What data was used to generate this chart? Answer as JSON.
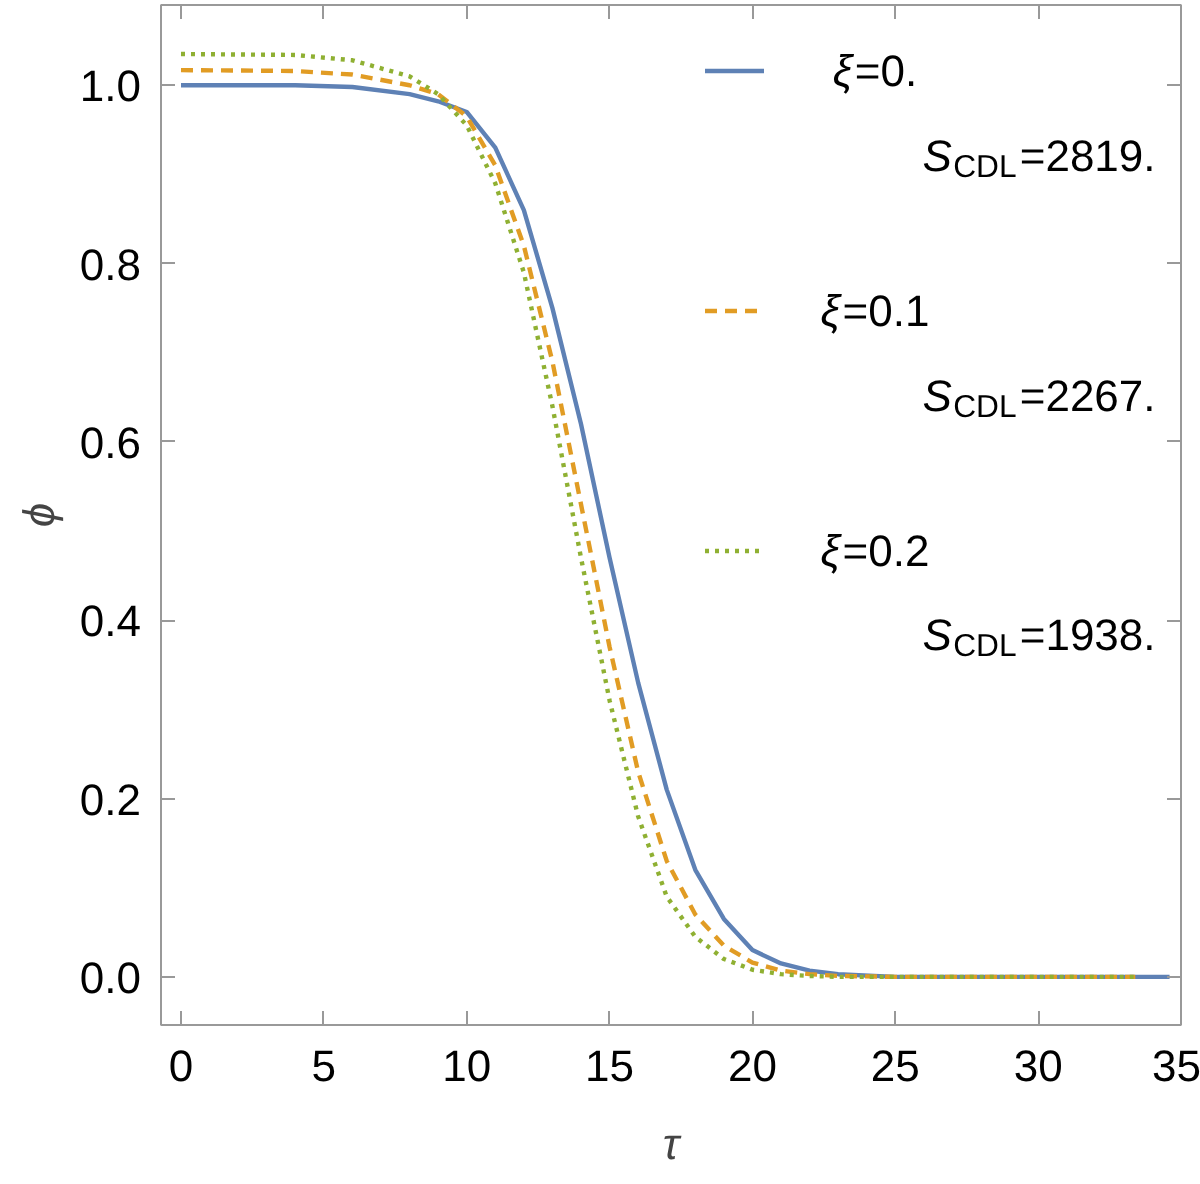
{
  "chart_data": {
    "type": "line",
    "xlabel": "τ",
    "ylabel": "ϕ",
    "xlim": [
      -0.7,
      35
    ],
    "ylim": [
      -0.054,
      1.09
    ],
    "xticks": [
      0,
      5,
      10,
      15,
      20,
      25,
      30,
      35
    ],
    "yticks": [
      {
        "value": 0,
        "label": "0.0"
      },
      {
        "value": 0.2,
        "label": "0.2"
      },
      {
        "value": 0.4,
        "label": "0.4"
      },
      {
        "value": 0.6,
        "label": "0.6"
      },
      {
        "value": 0.8,
        "label": "0.8"
      },
      {
        "value": 1,
        "label": "1.0"
      }
    ],
    "grid": false,
    "legend": "top right",
    "marker": "none",
    "series": [
      {
        "name": "ξ=0.\nS$_{CDL}$=2819.",
        "color": "#5e81b5",
        "line_style": "solid",
        "x": [
          0,
          4,
          6,
          8,
          9,
          10,
          11,
          12,
          13,
          14,
          15,
          16,
          17,
          18,
          19,
          20,
          21,
          22,
          23,
          25,
          30,
          34.6
        ],
        "values": [
          1.0,
          1.0,
          0.998,
          0.99,
          0.982,
          0.97,
          0.93,
          0.86,
          0.75,
          0.62,
          0.47,
          0.33,
          0.21,
          0.12,
          0.065,
          0.03,
          0.015,
          0.007,
          0.003,
          0.0,
          0.0,
          0.0
        ]
      },
      {
        "name": "ξ=0.1\nS$_{CDL}$=2267.",
        "color": "#e19c24",
        "line_style": "dashed",
        "x": [
          0,
          4,
          6,
          8,
          9,
          10,
          11,
          12,
          13,
          14,
          15,
          16,
          17,
          18,
          19,
          20,
          21,
          22,
          23,
          25,
          30,
          33.4
        ],
        "values": [
          1.017,
          1.016,
          1.012,
          1.0,
          0.99,
          0.965,
          0.91,
          0.82,
          0.69,
          0.53,
          0.37,
          0.23,
          0.13,
          0.07,
          0.035,
          0.016,
          0.007,
          0.003,
          0.001,
          0.0,
          0.0,
          0.0
        ]
      },
      {
        "name": "ξ=0.2\nS$_{CDL}$=1938.",
        "color": "#8fb032",
        "line_style": "dotted",
        "x": [
          0,
          4,
          6,
          8,
          9,
          10,
          11,
          12,
          13,
          14,
          15,
          16,
          17,
          18,
          19,
          20,
          21,
          22,
          23,
          25,
          30,
          33.4
        ],
        "values": [
          1.035,
          1.034,
          1.028,
          1.01,
          0.99,
          0.955,
          0.89,
          0.79,
          0.64,
          0.47,
          0.31,
          0.18,
          0.09,
          0.045,
          0.02,
          0.008,
          0.003,
          0.001,
          0.0,
          0.0,
          0.0,
          0.0
        ]
      }
    ]
  }
}
